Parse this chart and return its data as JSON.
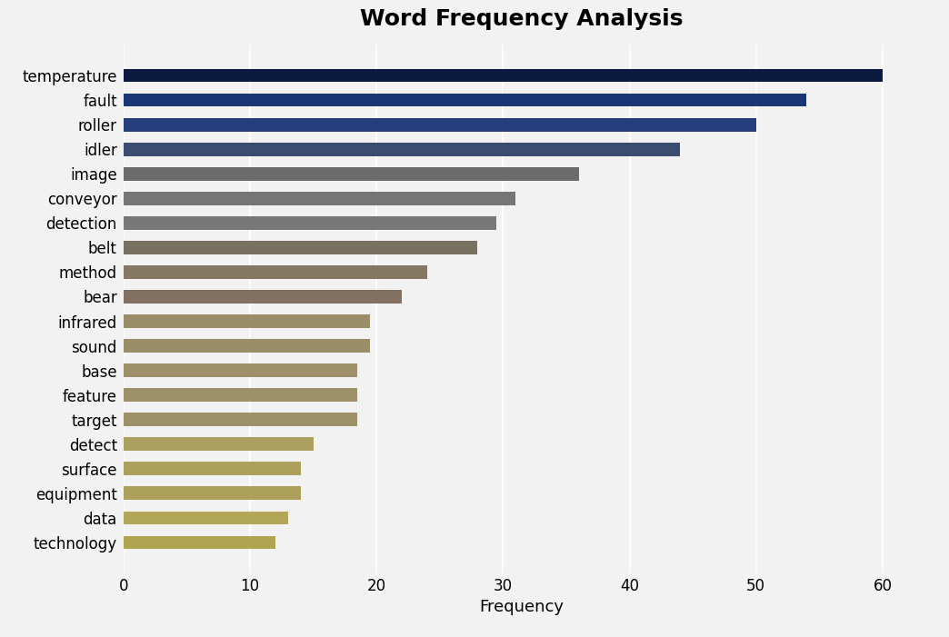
{
  "categories": [
    "temperature",
    "fault",
    "roller",
    "idler",
    "image",
    "conveyor",
    "detection",
    "belt",
    "method",
    "bear",
    "infrared",
    "sound",
    "base",
    "feature",
    "target",
    "detect",
    "surface",
    "equipment",
    "data",
    "technology"
  ],
  "values": [
    60,
    54,
    50,
    44,
    36,
    31,
    29.5,
    28,
    24,
    22,
    19.5,
    19.5,
    18.5,
    18.5,
    18.5,
    15,
    14,
    14,
    13,
    12
  ],
  "bar_colors": [
    "#0a1a3e",
    "#1a3573",
    "#253d7a",
    "#3a4d6e",
    "#6b6b6b",
    "#757575",
    "#787878",
    "#787060",
    "#847862",
    "#827060",
    "#9a8e6a",
    "#9a8e6a",
    "#9e9068",
    "#9e9068",
    "#9e9068",
    "#aca060",
    "#aca05a",
    "#aca05a",
    "#b2a658",
    "#b0a450"
  ],
  "title": "Word Frequency Analysis",
  "xlabel": "Frequency",
  "xlim": [
    0,
    63
  ],
  "xticks": [
    0,
    10,
    20,
    30,
    40,
    50,
    60
  ],
  "background_color": "#f2f2f2",
  "plot_bg_color": "#f2f2f2",
  "title_fontsize": 18,
  "label_fontsize": 13,
  "tick_fontsize": 12,
  "bar_height": 0.55
}
